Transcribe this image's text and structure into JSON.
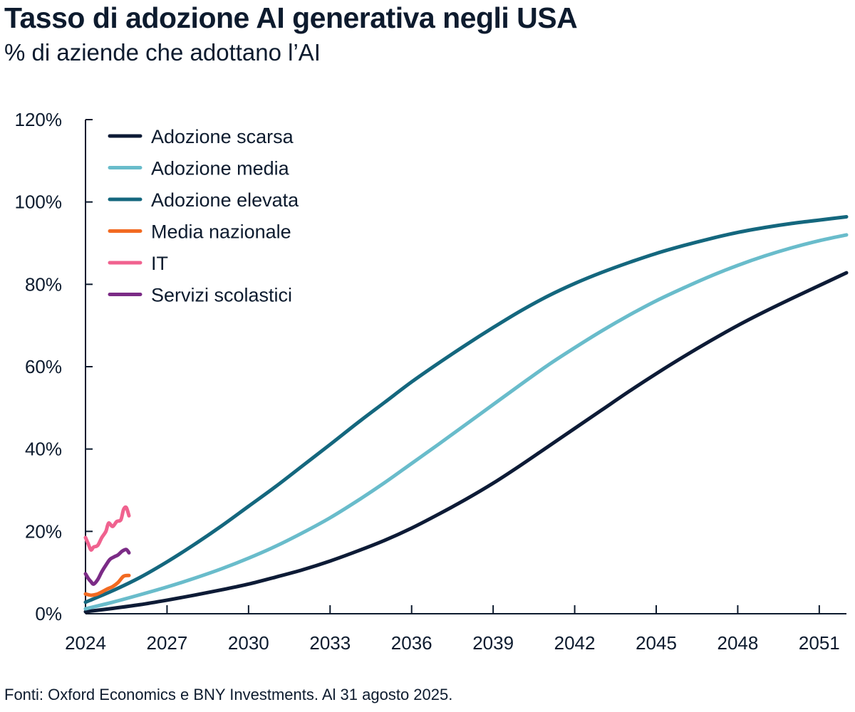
{
  "title": "Tasso di adozione AI generativa negli USA",
  "subtitle": "% di aziende che adottano l’AI",
  "footer": "Fonti: Oxford Economics e BNY Investments. Al 31 agosto 2025.",
  "chart_data": {
    "type": "line",
    "xlim": [
      2024,
      2052
    ],
    "ylim": [
      0,
      120
    ],
    "x_ticks": [
      2024,
      2027,
      2030,
      2033,
      2036,
      2039,
      2042,
      2045,
      2048,
      2051
    ],
    "x_tick_labels": [
      "2024",
      "2027",
      "2030",
      "2033",
      "2036",
      "2039",
      "2042",
      "2045",
      "2048",
      "2051"
    ],
    "y_ticks": [
      0,
      20,
      40,
      60,
      80,
      100,
      120
    ],
    "y_tick_labels": [
      "0%",
      "20%",
      "40%",
      "60%",
      "80%",
      "100%",
      "120%"
    ],
    "grid": false,
    "legend_position": "top-left",
    "series": [
      {
        "name": "Adozione scarsa",
        "color": "#0d1b36",
        "x": [
          2024,
          2025,
          2026,
          2027,
          2028,
          2029,
          2030,
          2031,
          2032,
          2033,
          2034,
          2035,
          2036,
          2037,
          2038,
          2039,
          2040,
          2041,
          2042,
          2043,
          2044,
          2045,
          2046,
          2047,
          2048,
          2049,
          2050,
          2051,
          2052
        ],
        "y": [
          0.5,
          1.3,
          2.2,
          3.3,
          4.5,
          5.8,
          7.2,
          8.9,
          10.7,
          12.8,
          15.2,
          17.8,
          20.8,
          24.2,
          27.8,
          31.7,
          36.0,
          40.5,
          45.0,
          49.5,
          54.0,
          58.3,
          62.4,
          66.3,
          70.0,
          73.4,
          76.6,
          79.7,
          82.8
        ]
      },
      {
        "name": "Adozione media",
        "color": "#69bccb",
        "x": [
          2024,
          2025,
          2026,
          2027,
          2028,
          2029,
          2030,
          2031,
          2032,
          2033,
          2034,
          2035,
          2036,
          2037,
          2038,
          2039,
          2040,
          2041,
          2042,
          2043,
          2044,
          2045,
          2046,
          2047,
          2048,
          2049,
          2050,
          2051,
          2052
        ],
        "y": [
          1.2,
          2.8,
          4.6,
          6.5,
          8.6,
          10.9,
          13.5,
          16.4,
          19.7,
          23.3,
          27.4,
          31.8,
          36.5,
          41.2,
          46.0,
          50.8,
          55.6,
          60.3,
          64.6,
          68.7,
          72.5,
          76.0,
          79.1,
          82.0,
          84.6,
          86.9,
          88.9,
          90.6,
          92.0
        ]
      },
      {
        "name": "Adozione elevata",
        "color": "#14677e",
        "x": [
          2024,
          2025,
          2026,
          2027,
          2028,
          2029,
          2030,
          2031,
          2032,
          2033,
          2034,
          2035,
          2036,
          2037,
          2038,
          2039,
          2040,
          2041,
          2042,
          2043,
          2044,
          2045,
          2046,
          2047,
          2048,
          2049,
          2050,
          2051,
          2052
        ],
        "y": [
          2.8,
          5.6,
          8.8,
          12.6,
          16.8,
          21.3,
          26.1,
          30.9,
          36.0,
          41.1,
          46.3,
          51.3,
          56.3,
          60.9,
          65.3,
          69.5,
          73.5,
          77.1,
          80.2,
          82.9,
          85.3,
          87.5,
          89.4,
          91.1,
          92.6,
          93.8,
          94.8,
          95.6,
          96.4
        ]
      },
      {
        "name": "Media nazionale",
        "color": "#f26a21",
        "x": [
          2024.0,
          2024.2,
          2024.4,
          2024.6,
          2024.8,
          2025.0,
          2025.2,
          2025.4,
          2025.6
        ],
        "y": [
          4.8,
          4.5,
          4.7,
          5.3,
          6.0,
          6.6,
          7.6,
          9.1,
          9.3
        ]
      },
      {
        "name": "IT",
        "color": "#f0628f",
        "x": [
          2024.0,
          2024.1,
          2024.2,
          2024.3,
          2024.45,
          2024.6,
          2024.75,
          2024.85,
          2025.0,
          2025.15,
          2025.3,
          2025.4,
          2025.5,
          2025.6
        ],
        "y": [
          18.5,
          17.0,
          15.5,
          16.2,
          16.6,
          18.5,
          20.0,
          22.0,
          21.2,
          22.4,
          22.8,
          25.3,
          25.8,
          23.8
        ]
      },
      {
        "name": "Servizi scolastici",
        "color": "#7b2b86",
        "x": [
          2024.0,
          2024.1,
          2024.2,
          2024.3,
          2024.45,
          2024.6,
          2024.75,
          2024.9,
          2025.05,
          2025.2,
          2025.35,
          2025.5,
          2025.6
        ],
        "y": [
          9.7,
          8.6,
          7.8,
          7.2,
          8.3,
          10.2,
          11.8,
          13.2,
          13.8,
          14.3,
          15.2,
          15.6,
          14.8
        ]
      }
    ]
  }
}
